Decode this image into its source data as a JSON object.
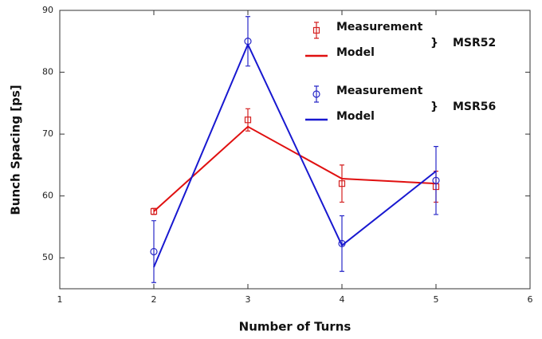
{
  "chart_data": {
    "type": "errorbar-line",
    "x_label": "Number of Turns",
    "y_label": "Bunch Spacing [ps]",
    "x": [
      2,
      3,
      4,
      5
    ],
    "xlim": [
      1,
      6
    ],
    "xticks": [
      1,
      2,
      3,
      4,
      5,
      6
    ],
    "ylim": [
      45,
      90
    ],
    "yticks": [
      50,
      60,
      70,
      80,
      90
    ],
    "groups": [
      {
        "name": "MSR52",
        "series": [
          {
            "name": "Measurement",
            "color": "#d42020",
            "marker": "square",
            "values": [
              57.5,
              72.3,
              62,
              61.5
            ],
            "errors": [
              0.5,
              1.8,
              3,
              2.5
            ]
          },
          {
            "name": "Model",
            "color": "#e01010",
            "values": [
              57.5,
              71.2,
              62.8,
              62
            ]
          }
        ]
      },
      {
        "name": "MSR56",
        "series": [
          {
            "name": "Measurement",
            "color": "#2828c8",
            "marker": "circle",
            "values": [
              51,
              85,
              52.3,
              62.5
            ],
            "errors": [
              5,
              4,
              4.5,
              5.5
            ]
          },
          {
            "name": "Model",
            "color": "#1818d0",
            "values": [
              48.5,
              84.5,
              52,
              64
            ]
          }
        ]
      }
    ]
  }
}
